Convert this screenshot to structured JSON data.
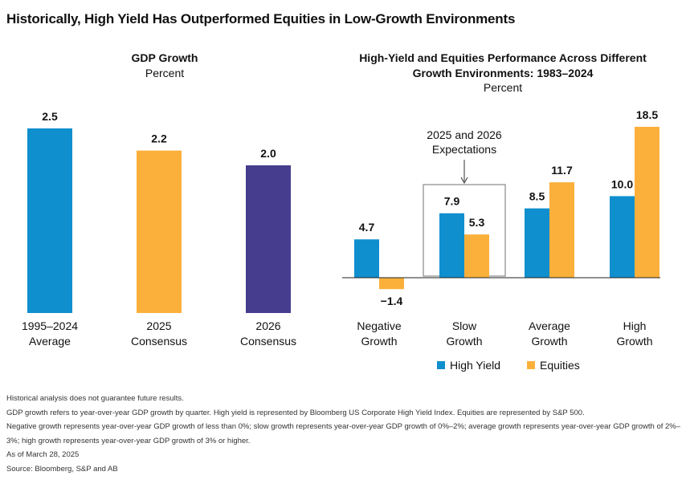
{
  "title": "Historically, High Yield Has Outperformed Equities in Low-Growth Environments",
  "colors": {
    "high_yield": "#0f8fce",
    "equities": "#fbb03b",
    "consensus_2026": "#463d8f",
    "text": "#111111",
    "box": "#888888"
  },
  "chart_data": [
    {
      "type": "bar",
      "title": "GDP Growth",
      "subtitle": "Percent",
      "categories": [
        "1995–2024 Average",
        "2025 Consensus",
        "2026 Consensus"
      ],
      "category_lines": [
        [
          "1995–2024",
          "Average"
        ],
        [
          "2025",
          "Consensus"
        ],
        [
          "2026",
          "Consensus"
        ]
      ],
      "values": [
        2.5,
        2.2,
        2.0
      ],
      "value_labels": [
        "2.5",
        "2.2",
        "2.0"
      ],
      "bar_colors": [
        "#0f8fce",
        "#fbb03b",
        "#463d8f"
      ],
      "ylim": [
        0,
        2.5
      ],
      "grid": false
    },
    {
      "type": "bar",
      "title_lines": [
        "High-Yield and Equities Performance Across Different",
        "Growth Environments: 1983–2024"
      ],
      "subtitle": "Percent",
      "categories": [
        "Negative Growth",
        "Slow Growth",
        "Average Growth",
        "High Growth"
      ],
      "category_lines": [
        [
          "Negative",
          "Growth"
        ],
        [
          "Slow",
          "Growth"
        ],
        [
          "Average",
          "Growth"
        ],
        [
          "High",
          "Growth"
        ]
      ],
      "series": [
        {
          "name": "High Yield",
          "values": [
            4.7,
            7.9,
            8.5,
            10.0
          ],
          "labels": [
            "4.7",
            "7.9",
            "8.5",
            "10.0"
          ],
          "color": "#0f8fce"
        },
        {
          "name": "Equities",
          "values": [
            -1.4,
            5.3,
            11.7,
            18.5
          ],
          "labels": [
            "−1.4",
            "5.3",
            "11.7",
            "18.5"
          ],
          "color": "#fbb03b"
        }
      ],
      "ylim": [
        -1.4,
        18.5
      ],
      "annotation": {
        "lines": [
          "2025 and 2026",
          "Expectations"
        ],
        "category": "Slow Growth"
      },
      "legend_position": "bottom",
      "grid": false
    }
  ],
  "footnotes": [
    "Historical analysis does not guarantee future results.",
    "GDP growth refers to year-over-year GDP growth by quarter. High yield is represented by Bloomberg US Corporate High Yield Index. Equities are represented by S&P 500.",
    "Negative growth represents year-over-year GDP growth of less than 0%; slow growth represents year-over-year GDP growth of 0%–2%; average growth represents year-over-year GDP growth of 2%–3%; high growth represents year-over-year GDP growth of 3% or higher.",
    "As of March 28, 2025",
    "Source: Bloomberg, S&P and AB"
  ]
}
